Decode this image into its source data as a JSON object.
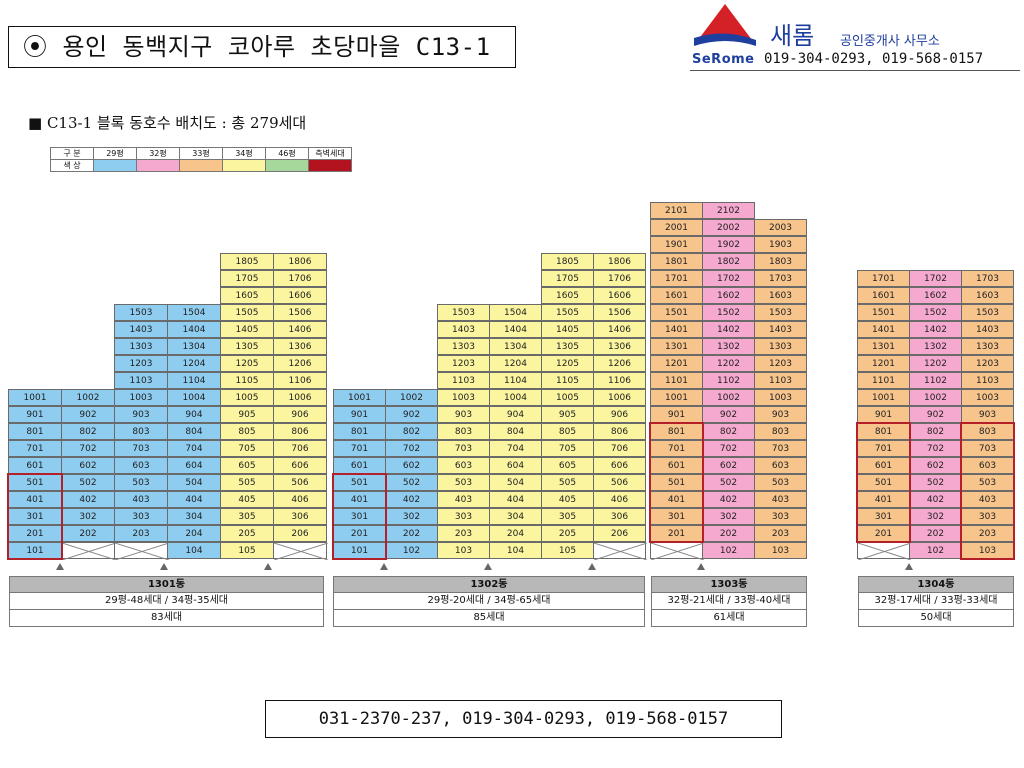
{
  "title": "⦿ 용인 동백지구 코아루 초당마을 C13-1",
  "logo": {
    "brand": "새롬",
    "office": "공인중개사 사무소",
    "en": "SeRome",
    "phones": "019-304-0293, 019-568-0157",
    "colors": {
      "triangle_top": "#d42027",
      "triangle_bottom": "#1f3f9e"
    }
  },
  "subtitle": "■ C13-1 블록 동호수 배치도 : 총 279세대",
  "legend": {
    "header": [
      "구 분",
      "29평",
      "32평",
      "33평",
      "34평",
      "46평",
      "측벽세대"
    ],
    "row_label": "색 상",
    "colors": [
      "#8fcdf0",
      "#f6a9cf",
      "#f7c48c",
      "#fbf5a0",
      "#a5d89a",
      "#b3131e"
    ]
  },
  "buildings": [
    {
      "name": "1301동",
      "mix": "29평-48세대 / 34평-35세대",
      "total": "83세대",
      "lines": [
        {
          "type": "29",
          "floors_top": 10,
          "labels": [
            "1001",
            "901",
            "801",
            "701",
            "601",
            "501",
            "401",
            "301",
            "201",
            "101"
          ],
          "empty_bottom": 0
        },
        {
          "type": "29",
          "floors_top": 10,
          "labels": [
            "1002",
            "902",
            "802",
            "702",
            "602",
            "502",
            "402",
            "302",
            "202"
          ],
          "empty_bottom": 1
        },
        {
          "type": "29",
          "floors_top": 15,
          "labels": [
            "1503",
            "1403",
            "1303",
            "1203",
            "1103",
            "1003",
            "903",
            "803",
            "703",
            "603",
            "503",
            "403",
            "303",
            "203"
          ],
          "empty_bottom": 1
        },
        {
          "type": "29",
          "floors_top": 15,
          "labels": [
            "1504",
            "1404",
            "1304",
            "1204",
            "1104",
            "1004",
            "904",
            "804",
            "704",
            "604",
            "504",
            "404",
            "304",
            "204",
            "104"
          ],
          "empty_bottom": 0
        },
        {
          "type": "34",
          "floors_top": 18,
          "labels": [
            "1805",
            "1705",
            "1605",
            "1505",
            "1405",
            "1305",
            "1205",
            "1105",
            "1005",
            "905",
            "805",
            "705",
            "605",
            "505",
            "405",
            "305",
            "205",
            "105"
          ],
          "empty_bottom": 0
        },
        {
          "type": "34",
          "floors_top": 18,
          "labels": [
            "1806",
            "1706",
            "1606",
            "1506",
            "1406",
            "1306",
            "1206",
            "1106",
            "1006",
            "906",
            "806",
            "706",
            "606",
            "506",
            "406",
            "306",
            "206"
          ],
          "empty_bottom": 1
        }
      ]
    },
    {
      "name": "1302동",
      "mix": "29평-20세대 / 34평-65세대",
      "total": "85세대",
      "lines": [
        {
          "type": "29",
          "floors_top": 10,
          "labels": [
            "1001",
            "901",
            "801",
            "701",
            "601",
            "501",
            "401",
            "301",
            "201",
            "101"
          ],
          "empty_bottom": 0
        },
        {
          "type": "29",
          "floors_top": 10,
          "labels": [
            "1002",
            "902",
            "802",
            "702",
            "602",
            "502",
            "402",
            "302",
            "202",
            "102"
          ],
          "empty_bottom": 0
        },
        {
          "type": "34",
          "floors_top": 15,
          "labels": [
            "1503",
            "1403",
            "1303",
            "1203",
            "1103",
            "1003",
            "903",
            "803",
            "703",
            "603",
            "503",
            "403",
            "303",
            "203",
            "103"
          ],
          "empty_bottom": 0
        },
        {
          "type": "34",
          "floors_top": 15,
          "labels": [
            "1504",
            "1404",
            "1304",
            "1204",
            "1104",
            "1004",
            "904",
            "804",
            "704",
            "604",
            "504",
            "404",
            "304",
            "204",
            "104"
          ],
          "empty_bottom": 0
        },
        {
          "type": "34",
          "floors_top": 18,
          "labels": [
            "1805",
            "1705",
            "1605",
            "1505",
            "1405",
            "1305",
            "1205",
            "1105",
            "1005",
            "905",
            "805",
            "705",
            "605",
            "505",
            "405",
            "305",
            "205",
            "105"
          ],
          "empty_bottom": 0
        },
        {
          "type": "34",
          "floors_top": 18,
          "labels": [
            "1806",
            "1706",
            "1606",
            "1506",
            "1406",
            "1306",
            "1206",
            "1106",
            "1006",
            "906",
            "806",
            "706",
            "606",
            "506",
            "406",
            "306",
            "206"
          ],
          "empty_bottom": 1
        }
      ]
    },
    {
      "name": "1303동",
      "mix": "32평-21세대 / 33평-40세대",
      "total": "61세대",
      "lines": [
        {
          "type": "33",
          "floors_top": 21,
          "labels": [
            "2101",
            "2001",
            "1901",
            "1801",
            "1701",
            "1601",
            "1501",
            "1401",
            "1301",
            "1201",
            "1101",
            "1001",
            "901",
            "801",
            "701",
            "601",
            "501",
            "401",
            "301",
            "201"
          ],
          "empty_bottom": 1
        },
        {
          "type": "32",
          "floors_top": 21,
          "labels": [
            "2102",
            "2002",
            "1902",
            "1802",
            "1702",
            "1602",
            "1502",
            "1402",
            "1302",
            "1202",
            "1102",
            "1002",
            "902",
            "802",
            "702",
            "602",
            "502",
            "402",
            "302",
            "202",
            "102"
          ],
          "empty_bottom": 0
        },
        {
          "type": "33",
          "floors_top": 20,
          "labels": [
            "2003",
            "1903",
            "1803",
            "1703",
            "1603",
            "1503",
            "1403",
            "1303",
            "1203",
            "1103",
            "1003",
            "903",
            "803",
            "703",
            "603",
            "503",
            "403",
            "303",
            "203",
            "103"
          ],
          "empty_bottom": 0
        }
      ]
    },
    {
      "name": "1304동",
      "mix": "32평-17세대 / 33평-33세대",
      "total": "50세대",
      "lines": [
        {
          "type": "33",
          "floors_top": 17,
          "labels": [
            "1701",
            "1601",
            "1501",
            "1401",
            "1301",
            "1201",
            "1101",
            "1001",
            "901",
            "801",
            "701",
            "601",
            "501",
            "401",
            "301",
            "201"
          ],
          "empty_bottom": 1
        },
        {
          "type": "32",
          "floors_top": 17,
          "labels": [
            "1702",
            "1602",
            "1502",
            "1402",
            "1302",
            "1202",
            "1102",
            "1002",
            "902",
            "802",
            "702",
            "602",
            "502",
            "402",
            "302",
            "202",
            "102"
          ],
          "empty_bottom": 0
        },
        {
          "type": "33",
          "floors_top": 17,
          "labels": [
            "1703",
            "1603",
            "1503",
            "1403",
            "1303",
            "1203",
            "1103",
            "1003",
            "903",
            "803",
            "703",
            "603",
            "503",
            "403",
            "303",
            "203",
            "103"
          ],
          "empty_bottom": 0
        }
      ]
    }
  ],
  "contact": "031-2370-237, 019-304-0293, 019-568-0157"
}
